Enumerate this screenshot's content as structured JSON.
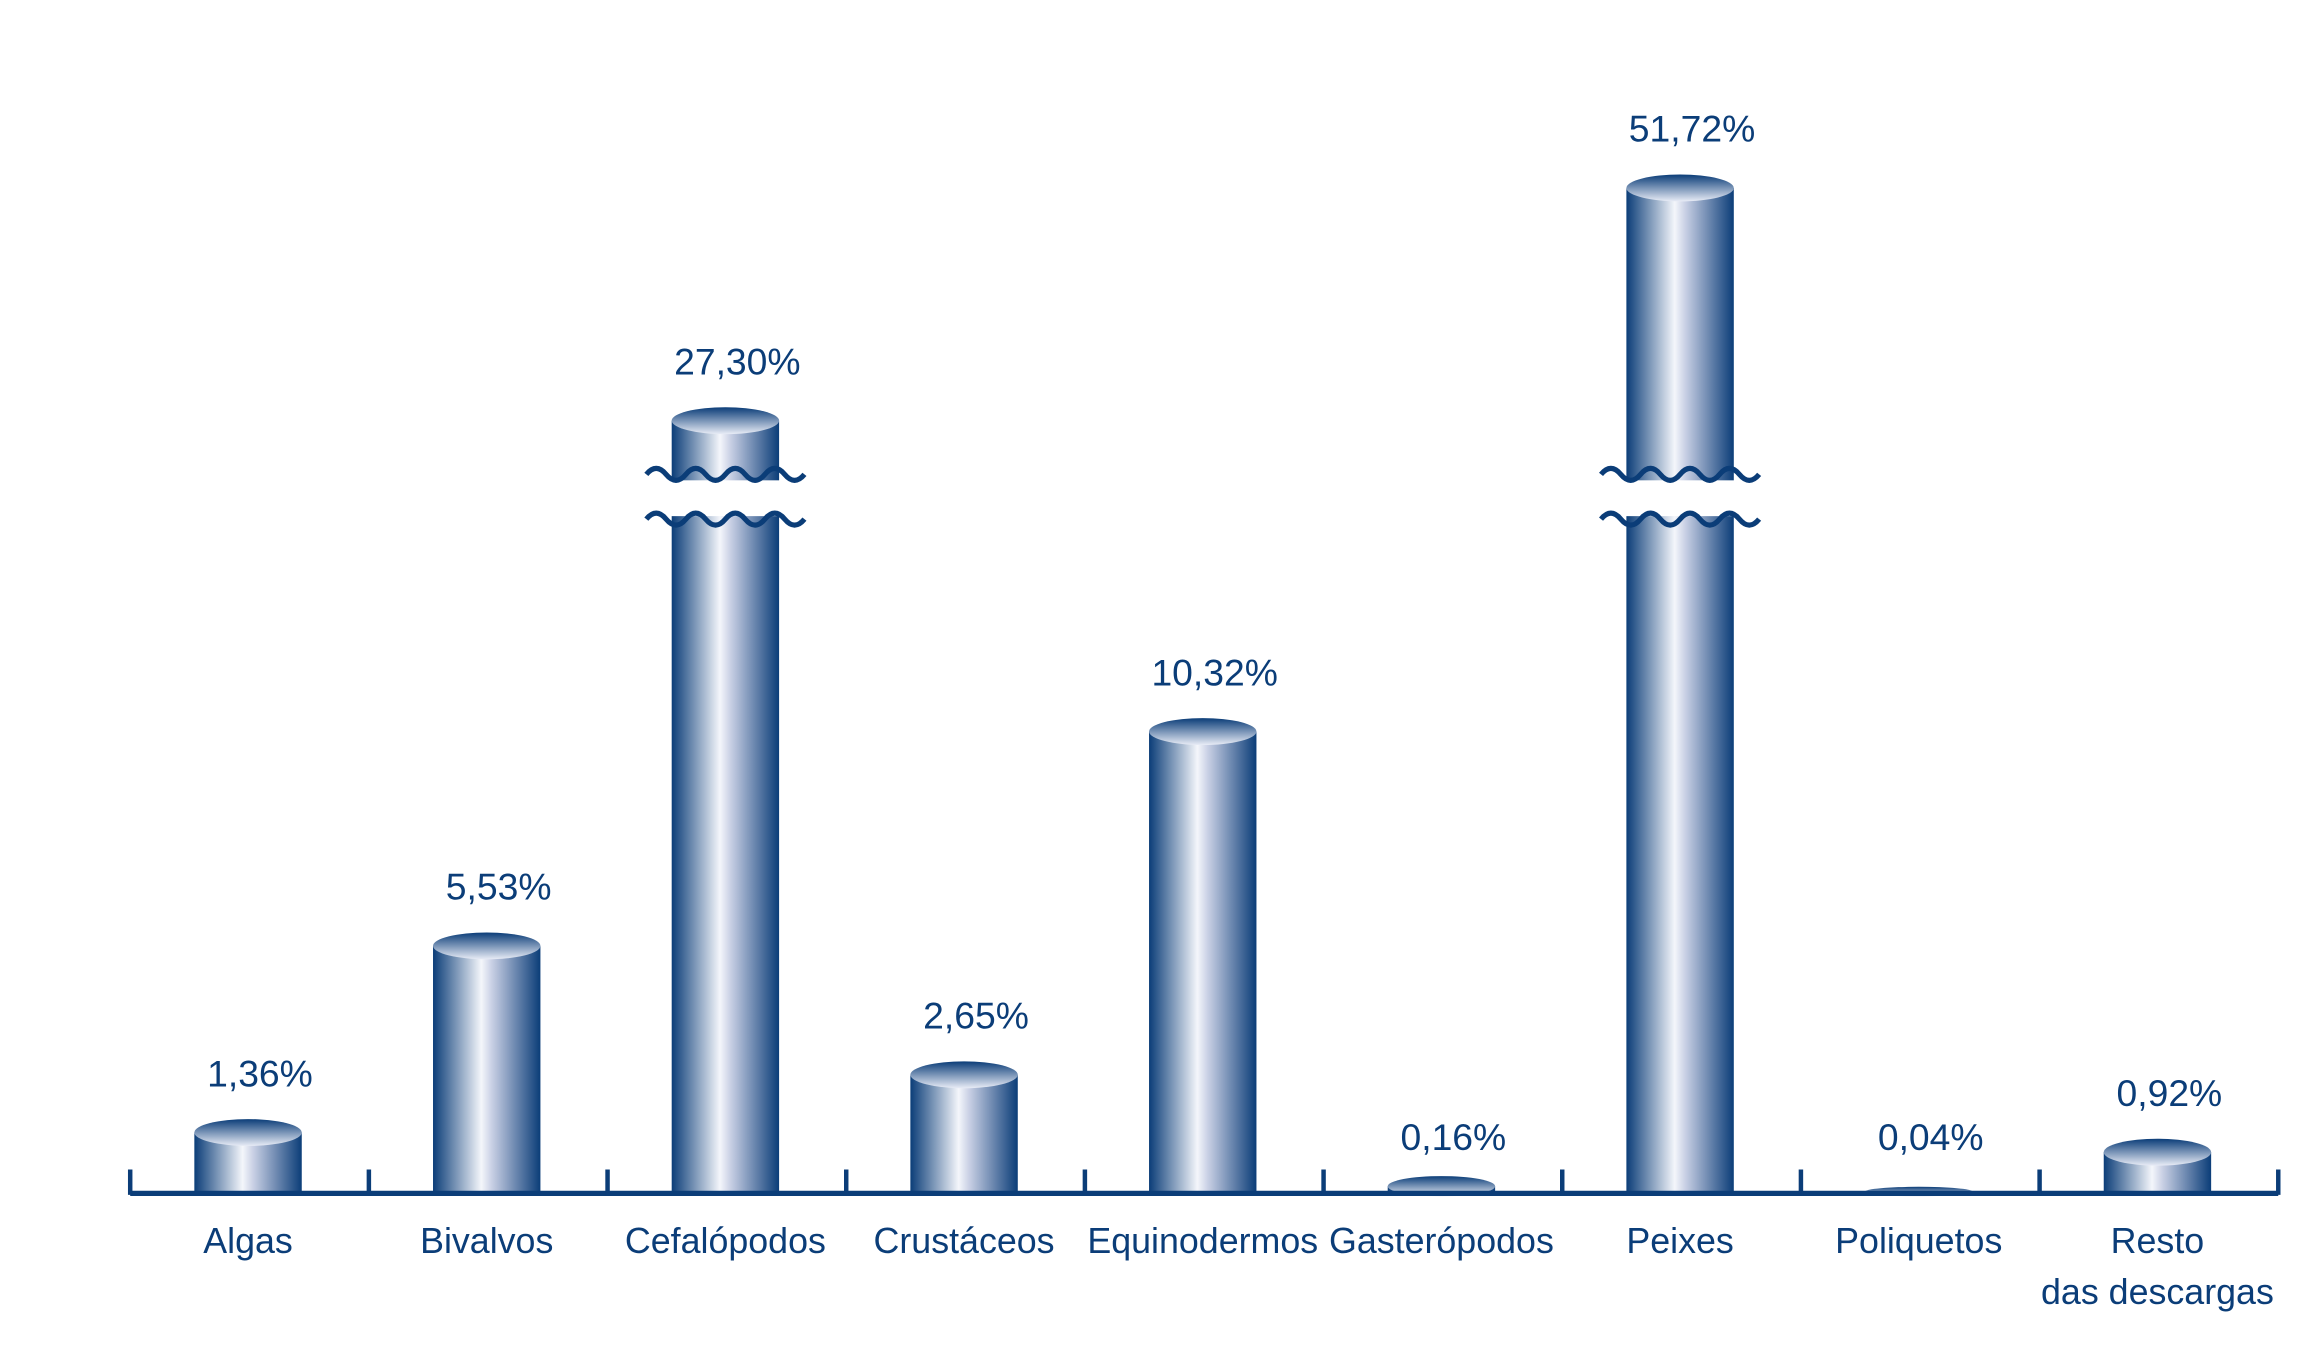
{
  "chart_data": {
    "type": "bar",
    "title": "",
    "xlabel": "",
    "ylabel": "",
    "categories": [
      "Algas",
      "Bivalvos",
      "Cefalópodos",
      "Crustáceos",
      "Equinodermos",
      "Gasterópodos",
      "Peixes",
      "Poliquetos",
      "Resto das descargas"
    ],
    "category_lines": [
      [
        "Algas"
      ],
      [
        "Bivalvos"
      ],
      [
        "Cefalópodos"
      ],
      [
        "Crustáceos"
      ],
      [
        "Equinodermos"
      ],
      [
        "Gasterópodos"
      ],
      [
        "Peixes"
      ],
      [
        "Poliquetos"
      ],
      [
        "Resto",
        "das descargas"
      ]
    ],
    "values": [
      1.36,
      5.53,
      27.3,
      2.65,
      10.32,
      0.16,
      51.72,
      0.04,
      0.92
    ],
    "value_labels": [
      "1,36%",
      "5,53%",
      "27,30%",
      "2,65%",
      "10,32%",
      "0,16%",
      "51,72%",
      "0,04%",
      "0,92%"
    ],
    "axis_break_bars": [
      "Cefalópodos",
      "Peixes"
    ],
    "bar_style": "3d-cylinder",
    "grid": false,
    "y_axis_visible": false,
    "colors": {
      "bar": "#0b3d78",
      "highlight": "#f4f6fb",
      "text": "#0b3d78"
    }
  }
}
